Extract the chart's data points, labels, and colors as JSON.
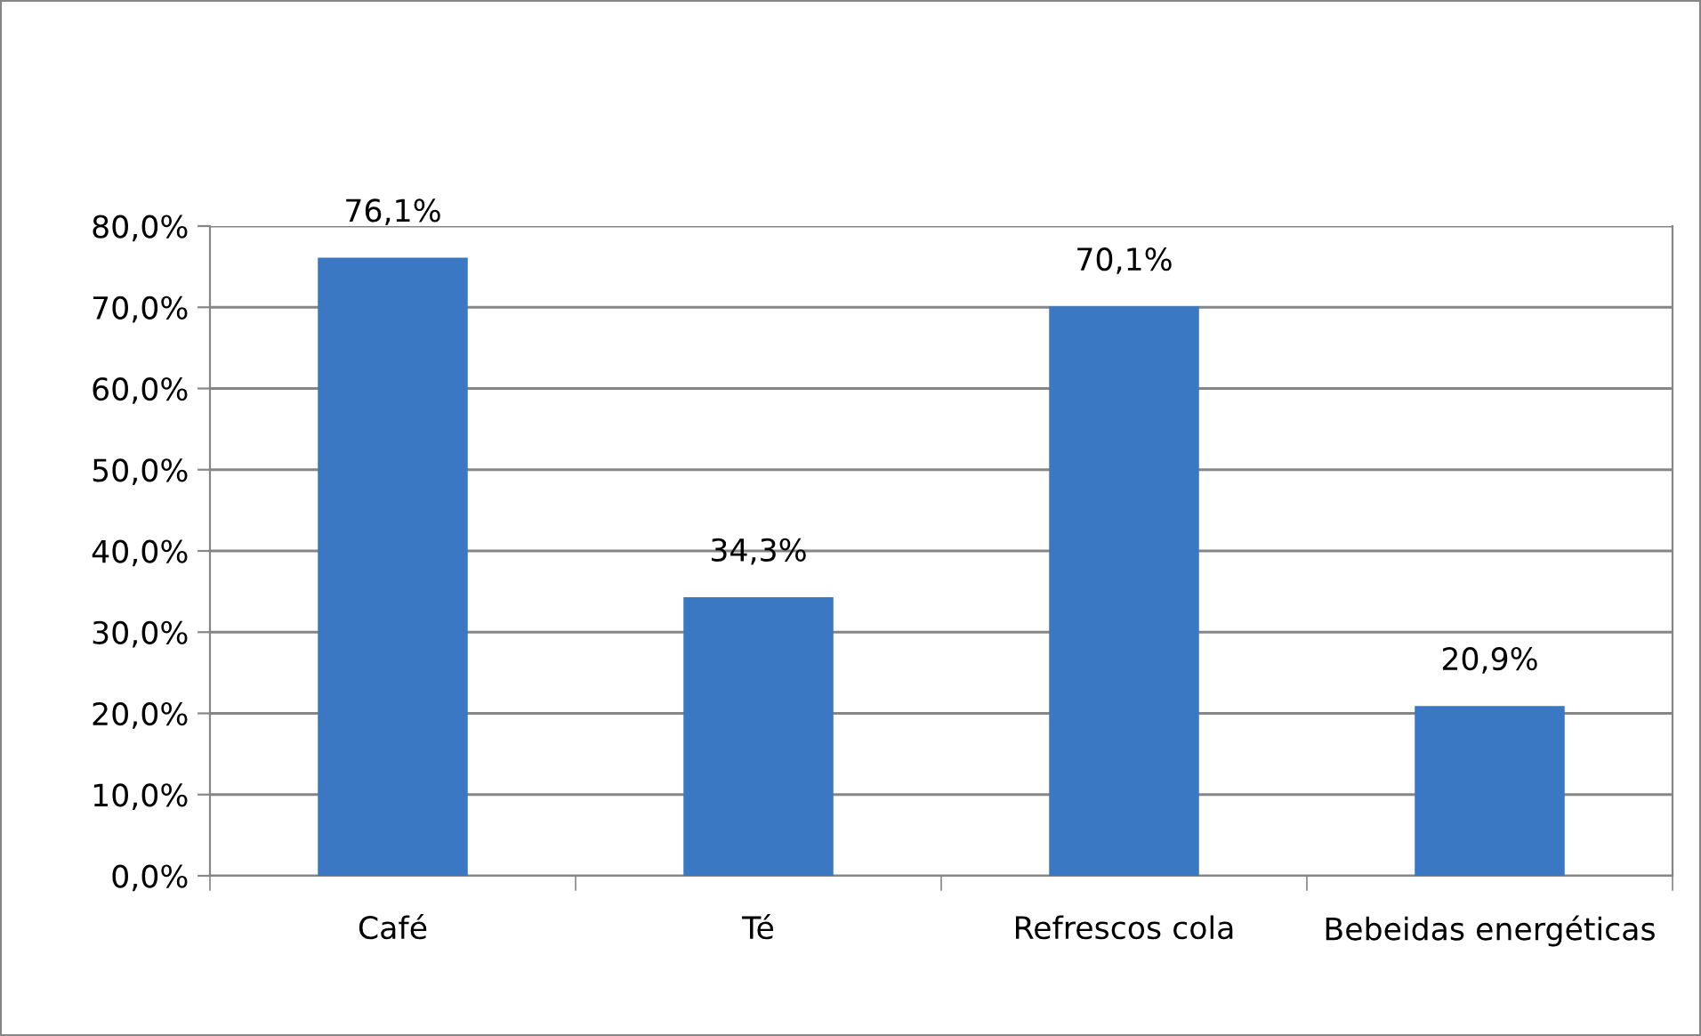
{
  "chart_data": {
    "type": "bar",
    "categories": [
      "Café",
      "Té",
      "Refrescos cola",
      "Bebeidas energéticas"
    ],
    "values": [
      76.1,
      34.3,
      70.1,
      20.9
    ],
    "value_labels": [
      "76,1%",
      "34,3%",
      "70,1%",
      "20,9%"
    ],
    "color": "#3a78c4",
    "ylim": [
      0,
      80
    ],
    "yticks": [
      {
        "value": 0,
        "label": "0,0%"
      },
      {
        "value": 10,
        "label": "10,0%"
      },
      {
        "value": 20,
        "label": "20,0%"
      },
      {
        "value": 30,
        "label": "30,0%"
      },
      {
        "value": 40,
        "label": "40,0%"
      },
      {
        "value": 50,
        "label": "50,0%"
      },
      {
        "value": 60,
        "label": "60,0%"
      },
      {
        "value": 70,
        "label": "70,0%"
      },
      {
        "value": 80,
        "label": "80,0%"
      }
    ],
    "grid": "y",
    "legend": false
  }
}
